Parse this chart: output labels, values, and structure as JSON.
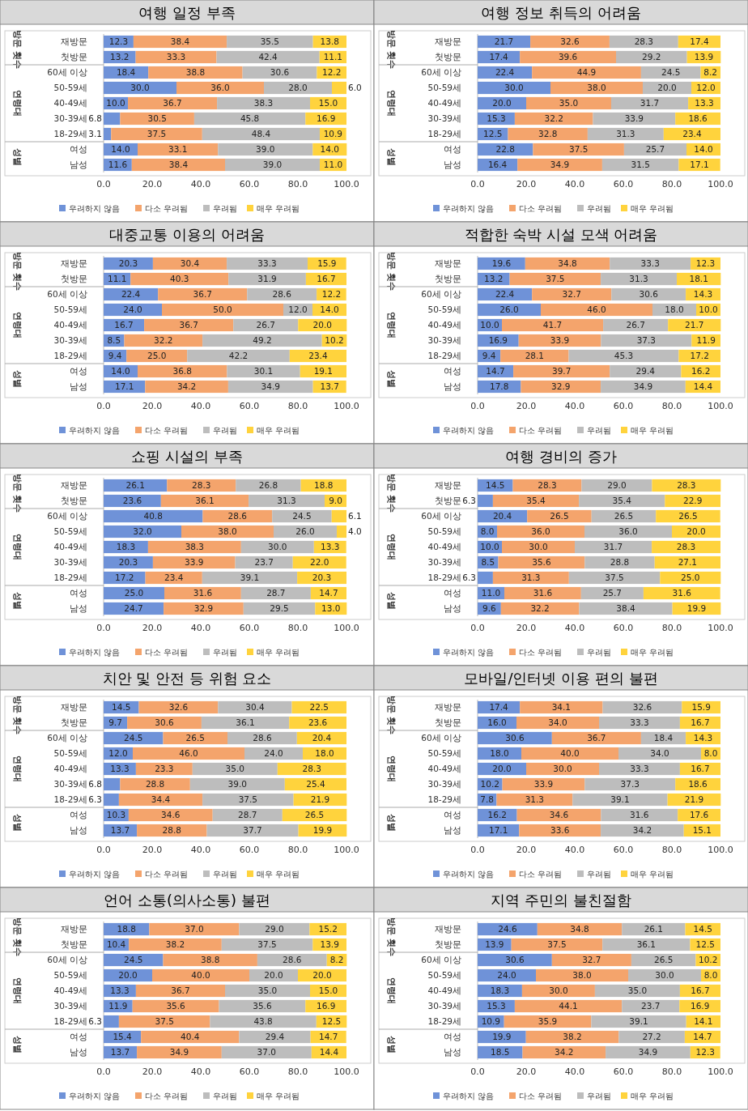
{
  "chart_data": [
    {
      "type": "bar",
      "orientation": "horizontal",
      "stacked": true,
      "title": "여행 일정 부족",
      "categories": [
        "재방문",
        "첫방문",
        "60세 이상",
        "50-59세",
        "40-49세",
        "30-39세",
        "18-29세",
        "여성",
        "남성"
      ],
      "annotations": [
        "방문 횟수",
        "연령대",
        "성별"
      ],
      "xlim": [
        0,
        100
      ],
      "xticks": [
        {
          "value": 0,
          "label": "0.0"
        },
        {
          "value": 20,
          "label": "20.0"
        },
        {
          "value": 40,
          "label": "40.0"
        },
        {
          "value": 60,
          "label": "60.0"
        },
        {
          "value": 80,
          "label": "80.0"
        },
        {
          "value": 100,
          "label": "100.0"
        }
      ],
      "legend": "bottom",
      "series": [
        {
          "name": "우려하지 않음",
          "color": "#6f92d8",
          "values": [
            12.3,
            13.2,
            18.4,
            30.0,
            10.0,
            6.8,
            3.1,
            14.0,
            11.6
          ],
          "value_labels": [
            "12.3",
            "13.2",
            "18.4",
            "30.0",
            "10.0",
            "6.8",
            "3.1",
            "14.0",
            "11.6"
          ]
        },
        {
          "name": "다소 우려됨",
          "color": "#f4a46c",
          "values": [
            38.4,
            33.3,
            38.8,
            36.0,
            36.7,
            30.5,
            37.5,
            33.1,
            38.4
          ],
          "value_labels": [
            "38.4",
            "33.3",
            "38.8",
            "36.0",
            "36.7",
            "30.5",
            "37.5",
            "33.1",
            "38.4"
          ]
        },
        {
          "name": "우려됨",
          "color": "#bdbdbd",
          "values": [
            35.5,
            42.4,
            30.6,
            28.0,
            38.3,
            45.8,
            48.4,
            39.0,
            39.0
          ],
          "value_labels": [
            "35.5",
            "42.4",
            "30.6",
            "28.0",
            "38.3",
            "45.8",
            "48.4",
            "39.0",
            "39.0"
          ]
        },
        {
          "name": "매우 우려됨",
          "color": "#ffd33d",
          "values": [
            13.8,
            11.1,
            12.2,
            6.0,
            15.0,
            16.9,
            10.9,
            14.0,
            11.0
          ],
          "value_labels": [
            "13.8",
            "11.1",
            "12.2",
            "6.0",
            "15.0",
            "16.9",
            "10.9",
            "14.0",
            "11.0"
          ]
        }
      ]
    },
    {
      "type": "bar",
      "orientation": "horizontal",
      "stacked": true,
      "title": "여행 정보 취득의 어려움",
      "categories": [
        "재방문",
        "첫방문",
        "60세 이상",
        "50-59세",
        "40-49세",
        "30-39세",
        "18-29세",
        "여성",
        "남성"
      ],
      "annotations": [
        "방문 횟수",
        "연령대",
        "성별"
      ],
      "xlim": [
        0,
        100
      ],
      "xticks": [
        {
          "value": 0,
          "label": "0.0"
        },
        {
          "value": 20,
          "label": "20.0"
        },
        {
          "value": 40,
          "label": "40.0"
        },
        {
          "value": 60,
          "label": "60.0"
        },
        {
          "value": 80,
          "label": "80.0"
        },
        {
          "value": 100,
          "label": "100.0"
        }
      ],
      "legend": "bottom",
      "series": [
        {
          "name": "우려하지 않음",
          "color": "#6f92d8",
          "values": [
            21.7,
            17.4,
            22.4,
            30.0,
            20.0,
            15.3,
            12.5,
            22.8,
            16.4
          ],
          "value_labels": [
            "21.7",
            "17.4",
            "22.4",
            "30.0",
            "20.0",
            "15.3",
            "12.5",
            "22.8",
            "16.4"
          ]
        },
        {
          "name": "다소 우려됨",
          "color": "#f4a46c",
          "values": [
            32.6,
            39.6,
            44.9,
            38.0,
            35.0,
            32.2,
            32.8,
            37.5,
            34.9
          ],
          "value_labels": [
            "32.6",
            "39.6",
            "44.9",
            "38.0",
            "35.0",
            "32.2",
            "32.8",
            "37.5",
            "34.9"
          ]
        },
        {
          "name": "우려됨",
          "color": "#bdbdbd",
          "values": [
            28.3,
            29.2,
            24.5,
            20.0,
            31.7,
            33.9,
            31.3,
            25.7,
            31.5
          ],
          "value_labels": [
            "28.3",
            "29.2",
            "24.5",
            "20.0",
            "31.7",
            "33.9",
            "31.3",
            "25.7",
            "31.5"
          ]
        },
        {
          "name": "매우 우려됨",
          "color": "#ffd33d",
          "values": [
            17.4,
            13.9,
            8.2,
            12.0,
            13.3,
            18.6,
            23.4,
            14.0,
            17.1
          ],
          "value_labels": [
            "17.4",
            "13.9",
            "8.2",
            "12.0",
            "13.3",
            "18.6",
            "23.4",
            "14.0",
            "17.1"
          ]
        }
      ]
    },
    {
      "type": "bar",
      "orientation": "horizontal",
      "stacked": true,
      "title": "대중교통 이용의 어려움",
      "categories": [
        "재방문",
        "첫방문",
        "60세 이상",
        "50-59세",
        "40-49세",
        "30-39세",
        "18-29세",
        "여성",
        "남성"
      ],
      "annotations": [
        "방문 횟수",
        "연령대",
        "성별"
      ],
      "xlim": [
        0,
        100
      ],
      "xticks": [
        {
          "value": 0,
          "label": "0.0"
        },
        {
          "value": 20,
          "label": "20.0"
        },
        {
          "value": 40,
          "label": "40.0"
        },
        {
          "value": 60,
          "label": "60.0"
        },
        {
          "value": 80,
          "label": "80.0"
        },
        {
          "value": 100,
          "label": "100.0"
        }
      ],
      "legend": "bottom",
      "series": [
        {
          "name": "우려하지 않음",
          "color": "#6f92d8",
          "values": [
            20.3,
            11.1,
            22.4,
            24.0,
            16.7,
            8.5,
            9.4,
            14.0,
            17.1
          ],
          "value_labels": [
            "20.3",
            "11.1",
            "22.4",
            "24.0",
            "16.7",
            "8.5",
            "9.4",
            "14.0",
            "17.1"
          ]
        },
        {
          "name": "다소 우려됨",
          "color": "#f4a46c",
          "values": [
            30.4,
            40.3,
            36.7,
            50.0,
            36.7,
            32.2,
            25.0,
            36.8,
            34.2
          ],
          "value_labels": [
            "30.4",
            "40.3",
            "36.7",
            "50.0",
            "36.7",
            "32.2",
            "25.0",
            "36.8",
            "34.2"
          ]
        },
        {
          "name": "우려됨",
          "color": "#bdbdbd",
          "values": [
            33.3,
            31.9,
            28.6,
            12.0,
            26.7,
            49.2,
            42.2,
            30.1,
            34.9
          ],
          "value_labels": [
            "33.3",
            "31.9",
            "28.6",
            "12.0",
            "26.7",
            "49.2",
            "42.2",
            "30.1",
            "34.9"
          ]
        },
        {
          "name": "매우 우려됨",
          "color": "#ffd33d",
          "values": [
            15.9,
            16.7,
            12.2,
            14.0,
            20.0,
            10.2,
            23.4,
            19.1,
            13.7
          ],
          "value_labels": [
            "15.9",
            "16.7",
            "12.2",
            "14.0",
            "20.0",
            "10.2",
            "23.4",
            "19.1",
            "13.7"
          ]
        }
      ]
    },
    {
      "type": "bar",
      "orientation": "horizontal",
      "stacked": true,
      "title": "적합한 숙박 시설 모색 어려움",
      "categories": [
        "재방문",
        "첫방문",
        "60세 이상",
        "50-59세",
        "40-49세",
        "30-39세",
        "18-29세",
        "여성",
        "남성"
      ],
      "annotations": [
        "방문 횟수",
        "연령대",
        "성별"
      ],
      "xlim": [
        0,
        100
      ],
      "xticks": [
        {
          "value": 0,
          "label": "0.0"
        },
        {
          "value": 20,
          "label": "20.0"
        },
        {
          "value": 40,
          "label": "40.0"
        },
        {
          "value": 60,
          "label": "60.0"
        },
        {
          "value": 80,
          "label": "80.0"
        },
        {
          "value": 100,
          "label": "100.0"
        }
      ],
      "legend": "bottom",
      "series": [
        {
          "name": "우려하지 않음",
          "color": "#6f92d8",
          "values": [
            19.6,
            13.2,
            22.4,
            26.0,
            10.0,
            16.9,
            9.4,
            14.7,
            17.8
          ],
          "value_labels": [
            "19.6",
            "13.2",
            "22.4",
            "26.0",
            "10.0",
            "16.9",
            "9.4",
            "14.7",
            "17.8"
          ]
        },
        {
          "name": "다소 우려됨",
          "color": "#f4a46c",
          "values": [
            34.8,
            37.5,
            32.7,
            46.0,
            41.7,
            33.9,
            28.1,
            39.7,
            32.9
          ],
          "value_labels": [
            "34.8",
            "37.5",
            "32.7",
            "46.0",
            "41.7",
            "33.9",
            "28.1",
            "39.7",
            "32.9"
          ]
        },
        {
          "name": "우려됨",
          "color": "#bdbdbd",
          "values": [
            33.3,
            31.3,
            30.6,
            18.0,
            26.7,
            37.3,
            45.3,
            29.4,
            34.9
          ],
          "value_labels": [
            "33.3",
            "31.3",
            "30.6",
            "18.0",
            "26.7",
            "37.3",
            "45.3",
            "29.4",
            "34.9"
          ]
        },
        {
          "name": "매우 우려됨",
          "color": "#ffd33d",
          "values": [
            12.3,
            18.1,
            14.3,
            10.0,
            21.7,
            11.9,
            17.2,
            16.2,
            14.4
          ],
          "value_labels": [
            "12.3",
            "18.1",
            "14.3",
            "10.0",
            "21.7",
            "11.9",
            "17.2",
            "16.2",
            "14.4"
          ]
        }
      ]
    },
    {
      "type": "bar",
      "orientation": "horizontal",
      "stacked": true,
      "title": "쇼핑 시설의 부족",
      "categories": [
        "재방문",
        "첫방문",
        "60세 이상",
        "50-59세",
        "40-49세",
        "30-39세",
        "18-29세",
        "여성",
        "남성"
      ],
      "annotations": [
        "방문 횟수",
        "연령대",
        "성별"
      ],
      "xlim": [
        0,
        100
      ],
      "xticks": [
        {
          "value": 0,
          "label": "0.0"
        },
        {
          "value": 20,
          "label": "20.0"
        },
        {
          "value": 40,
          "label": "40.0"
        },
        {
          "value": 60,
          "label": "60.0"
        },
        {
          "value": 80,
          "label": "80.0"
        },
        {
          "value": 100,
          "label": "100.0"
        }
      ],
      "legend": "bottom",
      "series": [
        {
          "name": "우려하지 않음",
          "color": "#6f92d8",
          "values": [
            26.1,
            23.6,
            40.8,
            32.0,
            18.3,
            20.3,
            17.2,
            25.0,
            24.7
          ],
          "value_labels": [
            "26.1",
            "23.6",
            "40.8",
            "32.0",
            "18.3",
            "20.3",
            "17.2",
            "25.0",
            "24.7"
          ]
        },
        {
          "name": "다소 우려됨",
          "color": "#f4a46c",
          "values": [
            28.3,
            36.1,
            28.6,
            38.0,
            38.3,
            33.9,
            23.4,
            31.6,
            32.9
          ],
          "value_labels": [
            "28.3",
            "36.1",
            "28.6",
            "38.0",
            "38.3",
            "33.9",
            "23.4",
            "31.6",
            "32.9"
          ]
        },
        {
          "name": "우려됨",
          "color": "#bdbdbd",
          "values": [
            26.8,
            31.3,
            24.5,
            26.0,
            30.0,
            23.7,
            39.1,
            28.7,
            29.5
          ],
          "value_labels": [
            "26.8",
            "31.3",
            "24.5",
            "26.0",
            "30.0",
            "23.7",
            "39.1",
            "28.7",
            "29.5"
          ]
        },
        {
          "name": "매우 우려됨",
          "color": "#ffd33d",
          "values": [
            18.8,
            9.0,
            6.1,
            4.0,
            13.3,
            22.0,
            20.3,
            14.7,
            13.0
          ],
          "value_labels": [
            "18.8",
            "9.0",
            "6.1",
            "4.0",
            "13.3",
            "22.0",
            "20.3",
            "14.7",
            "13.0"
          ]
        }
      ]
    },
    {
      "type": "bar",
      "orientation": "horizontal",
      "stacked": true,
      "title": "여행 경비의 증가",
      "categories": [
        "재방문",
        "첫방문",
        "60세 이상",
        "50-59세",
        "40-49세",
        "30-39세",
        "18-29세",
        "여성",
        "남성"
      ],
      "annotations": [
        "방문 횟수",
        "연령대",
        "성별"
      ],
      "xlim": [
        0,
        100
      ],
      "xticks": [
        {
          "value": 0,
          "label": "0.0"
        },
        {
          "value": 20,
          "label": "20.0"
        },
        {
          "value": 40,
          "label": "40.0"
        },
        {
          "value": 60,
          "label": "60.0"
        },
        {
          "value": 80,
          "label": "80.0"
        },
        {
          "value": 100,
          "label": "100.0"
        }
      ],
      "legend": "bottom",
      "series": [
        {
          "name": "우려하지 않음",
          "color": "#6f92d8",
          "values": [
            14.5,
            6.3,
            20.4,
            8.0,
            10.0,
            8.5,
            6.3,
            11.0,
            9.6
          ],
          "value_labels": [
            "14.5",
            "6.3",
            "20.4",
            "8.0",
            "10.0",
            "8.5",
            "6.3",
            "11.0",
            "9.6"
          ]
        },
        {
          "name": "다소 우려됨",
          "color": "#f4a46c",
          "values": [
            28.3,
            35.4,
            26.5,
            36.0,
            30.0,
            35.6,
            31.3,
            31.6,
            32.2
          ],
          "value_labels": [
            "28.3",
            "35.4",
            "26.5",
            "36.0",
            "30.0",
            "35.6",
            "31.3",
            "31.6",
            "32.2"
          ]
        },
        {
          "name": "우려됨",
          "color": "#bdbdbd",
          "values": [
            29.0,
            35.4,
            26.5,
            36.0,
            31.7,
            28.8,
            37.5,
            25.7,
            38.4
          ],
          "value_labels": [
            "29.0",
            "35.4",
            "26.5",
            "36.0",
            "31.7",
            "28.8",
            "37.5",
            "25.7",
            "38.4"
          ]
        },
        {
          "name": "매우 우려됨",
          "color": "#ffd33d",
          "values": [
            28.3,
            22.9,
            26.5,
            20.0,
            28.3,
            27.1,
            25.0,
            31.6,
            19.9
          ],
          "value_labels": [
            "28.3",
            "22.9",
            "26.5",
            "20.0",
            "28.3",
            "27.1",
            "25.0",
            "31.6",
            "19.9"
          ]
        }
      ]
    },
    {
      "type": "bar",
      "orientation": "horizontal",
      "stacked": true,
      "title": "치안 및 안전 등 위험 요소",
      "categories": [
        "재방문",
        "첫방문",
        "60세 이상",
        "50-59세",
        "40-49세",
        "30-39세",
        "18-29세",
        "여성",
        "남성"
      ],
      "annotations": [
        "방문 횟수",
        "연령대",
        "성별"
      ],
      "xlim": [
        0,
        100
      ],
      "xticks": [
        {
          "value": 0,
          "label": "0.0"
        },
        {
          "value": 20,
          "label": "20.0"
        },
        {
          "value": 40,
          "label": "40.0"
        },
        {
          "value": 60,
          "label": "60.0"
        },
        {
          "value": 80,
          "label": "80.0"
        },
        {
          "value": 100,
          "label": "100.0"
        }
      ],
      "legend": "bottom",
      "series": [
        {
          "name": "우려하지 않음",
          "color": "#6f92d8",
          "values": [
            14.5,
            9.7,
            24.5,
            12.0,
            13.3,
            6.8,
            6.3,
            10.3,
            13.7
          ],
          "value_labels": [
            "14.5",
            "9.7",
            "24.5",
            "12.0",
            "13.3",
            "6.8",
            "6.3",
            "10.3",
            "13.7"
          ]
        },
        {
          "name": "다소 우려됨",
          "color": "#f4a46c",
          "values": [
            32.6,
            30.6,
            26.5,
            46.0,
            23.3,
            28.8,
            34.4,
            34.6,
            28.8
          ],
          "value_labels": [
            "32.6",
            "30.6",
            "26.5",
            "46.0",
            "23.3",
            "28.8",
            "34.4",
            "34.6",
            "28.8"
          ]
        },
        {
          "name": "우려됨",
          "color": "#bdbdbd",
          "values": [
            30.4,
            36.1,
            28.6,
            24.0,
            35.0,
            39.0,
            37.5,
            28.7,
            37.7
          ],
          "value_labels": [
            "30.4",
            "36.1",
            "28.6",
            "24.0",
            "35.0",
            "39.0",
            "37.5",
            "28.7",
            "37.7"
          ]
        },
        {
          "name": "매우 우려됨",
          "color": "#ffd33d",
          "values": [
            22.5,
            23.6,
            20.4,
            18.0,
            28.3,
            25.4,
            21.9,
            26.5,
            19.9
          ],
          "value_labels": [
            "22.5",
            "23.6",
            "20.4",
            "18.0",
            "28.3",
            "25.4",
            "21.9",
            "26.5",
            "19.9"
          ]
        }
      ]
    },
    {
      "type": "bar",
      "orientation": "horizontal",
      "stacked": true,
      "title": "모바일/인터넷 이용 편의 불편",
      "categories": [
        "재방문",
        "첫방문",
        "60세 이상",
        "50-59세",
        "40-49세",
        "30-39세",
        "18-29세",
        "여성",
        "남성"
      ],
      "annotations": [
        "방문 횟수",
        "연령대",
        "성별"
      ],
      "xlim": [
        0,
        100
      ],
      "xticks": [
        {
          "value": 0,
          "label": "0.0"
        },
        {
          "value": 20,
          "label": "20.0"
        },
        {
          "value": 40,
          "label": "40.0"
        },
        {
          "value": 60,
          "label": "60.0"
        },
        {
          "value": 80,
          "label": "80.0"
        },
        {
          "value": 100,
          "label": "100.0"
        }
      ],
      "legend": "bottom",
      "series": [
        {
          "name": "우려하지 않음",
          "color": "#6f92d8",
          "values": [
            17.4,
            16.0,
            30.6,
            18.0,
            20.0,
            10.2,
            7.8,
            16.2,
            17.1
          ],
          "value_labels": [
            "17.4",
            "16.0",
            "30.6",
            "18.0",
            "20.0",
            "10.2",
            "7.8",
            "16.2",
            "17.1"
          ]
        },
        {
          "name": "다소 우려됨",
          "color": "#f4a46c",
          "values": [
            34.1,
            34.0,
            36.7,
            40.0,
            30.0,
            33.9,
            31.3,
            34.6,
            33.6
          ],
          "value_labels": [
            "34.1",
            "34.0",
            "36.7",
            "40.0",
            "30.0",
            "33.9",
            "31.3",
            "34.6",
            "33.6"
          ]
        },
        {
          "name": "우려됨",
          "color": "#bdbdbd",
          "values": [
            32.6,
            33.3,
            18.4,
            34.0,
            33.3,
            37.3,
            39.1,
            31.6,
            34.2
          ],
          "value_labels": [
            "32.6",
            "33.3",
            "18.4",
            "34.0",
            "33.3",
            "37.3",
            "39.1",
            "31.6",
            "34.2"
          ]
        },
        {
          "name": "매우 우려됨",
          "color": "#ffd33d",
          "values": [
            15.9,
            16.7,
            14.3,
            8.0,
            16.7,
            18.6,
            21.9,
            17.6,
            15.1
          ],
          "value_labels": [
            "15.9",
            "16.7",
            "14.3",
            "8.0",
            "16.7",
            "18.6",
            "21.9",
            "17.6",
            "15.1"
          ]
        }
      ]
    },
    {
      "type": "bar",
      "orientation": "horizontal",
      "stacked": true,
      "title": "언어 소통(의사소통) 불편",
      "categories": [
        "재방문",
        "첫방문",
        "60세 이상",
        "50-59세",
        "40-49세",
        "30-39세",
        "18-29세",
        "여성",
        "남성"
      ],
      "annotations": [
        "방문 횟수",
        "연령대",
        "성별"
      ],
      "xlim": [
        0,
        100
      ],
      "xticks": [
        {
          "value": 0,
          "label": "0.0"
        },
        {
          "value": 20,
          "label": "20.0"
        },
        {
          "value": 40,
          "label": "40.0"
        },
        {
          "value": 60,
          "label": "60.0"
        },
        {
          "value": 80,
          "label": "80.0"
        },
        {
          "value": 100,
          "label": "100.0"
        }
      ],
      "legend": "bottom",
      "series": [
        {
          "name": "우려하지 않음",
          "color": "#6f92d8",
          "values": [
            18.8,
            10.4,
            24.5,
            20.0,
            13.3,
            11.9,
            6.3,
            15.4,
            13.7
          ],
          "value_labels": [
            "18.8",
            "10.4",
            "24.5",
            "20.0",
            "13.3",
            "11.9",
            "6.3",
            "15.4",
            "13.7"
          ]
        },
        {
          "name": "다소 우려됨",
          "color": "#f4a46c",
          "values": [
            37.0,
            38.2,
            38.8,
            40.0,
            36.7,
            35.6,
            37.5,
            40.4,
            34.9
          ],
          "value_labels": [
            "37.0",
            "38.2",
            "38.8",
            "40.0",
            "36.7",
            "35.6",
            "37.5",
            "40.4",
            "34.9"
          ]
        },
        {
          "name": "우려됨",
          "color": "#bdbdbd",
          "values": [
            29.0,
            37.5,
            28.6,
            20.0,
            35.0,
            35.6,
            43.8,
            29.4,
            37.0
          ],
          "value_labels": [
            "29.0",
            "37.5",
            "28.6",
            "20.0",
            "35.0",
            "35.6",
            "43.8",
            "29.4",
            "37.0"
          ]
        },
        {
          "name": "매우 우려됨",
          "color": "#ffd33d",
          "values": [
            15.2,
            13.9,
            8.2,
            20.0,
            15.0,
            16.9,
            12.5,
            14.7,
            14.4
          ],
          "value_labels": [
            "15.2",
            "13.9",
            "8.2",
            "20.0",
            "15.0",
            "16.9",
            "12.5",
            "14.7",
            "14.4"
          ]
        }
      ]
    },
    {
      "type": "bar",
      "orientation": "horizontal",
      "stacked": true,
      "title": "지역 주민의 불친절함",
      "categories": [
        "재방문",
        "첫방문",
        "60세 이상",
        "50-59세",
        "40-49세",
        "30-39세",
        "18-29세",
        "여성",
        "남성"
      ],
      "annotations": [
        "방문 횟수",
        "연령대",
        "성별"
      ],
      "xlim": [
        0,
        100
      ],
      "xticks": [
        {
          "value": 0,
          "label": "0.0"
        },
        {
          "value": 20,
          "label": "20.0"
        },
        {
          "value": 40,
          "label": "40.0"
        },
        {
          "value": 60,
          "label": "60.0"
        },
        {
          "value": 80,
          "label": "80.0"
        },
        {
          "value": 100,
          "label": "100.0"
        }
      ],
      "legend": "bottom",
      "series": [
        {
          "name": "우려하지 않음",
          "color": "#6f92d8",
          "values": [
            24.6,
            13.9,
            30.6,
            24.0,
            18.3,
            15.3,
            10.9,
            19.9,
            18.5
          ],
          "value_labels": [
            "24.6",
            "13.9",
            "30.6",
            "24.0",
            "18.3",
            "15.3",
            "10.9",
            "19.9",
            "18.5"
          ]
        },
        {
          "name": "다소 우려됨",
          "color": "#f4a46c",
          "values": [
            34.8,
            37.5,
            32.7,
            38.0,
            30.0,
            44.1,
            35.9,
            38.2,
            34.2
          ],
          "value_labels": [
            "34.8",
            "37.5",
            "32.7",
            "38.0",
            "30.0",
            "44.1",
            "35.9",
            "38.2",
            "34.2"
          ]
        },
        {
          "name": "우려됨",
          "color": "#bdbdbd",
          "values": [
            26.1,
            36.1,
            26.5,
            30.0,
            35.0,
            23.7,
            39.1,
            27.2,
            34.9
          ],
          "value_labels": [
            "26.1",
            "36.1",
            "26.5",
            "30.0",
            "35.0",
            "23.7",
            "39.1",
            "27.2",
            "34.9"
          ]
        },
        {
          "name": "매우 우려됨",
          "color": "#ffd33d",
          "values": [
            14.5,
            12.5,
            10.2,
            8.0,
            16.7,
            16.9,
            14.1,
            14.7,
            12.3
          ],
          "value_labels": [
            "14.5",
            "12.5",
            "10.2",
            "8.0",
            "16.7",
            "16.9",
            "14.1",
            "14.7",
            "12.3"
          ]
        }
      ]
    }
  ]
}
